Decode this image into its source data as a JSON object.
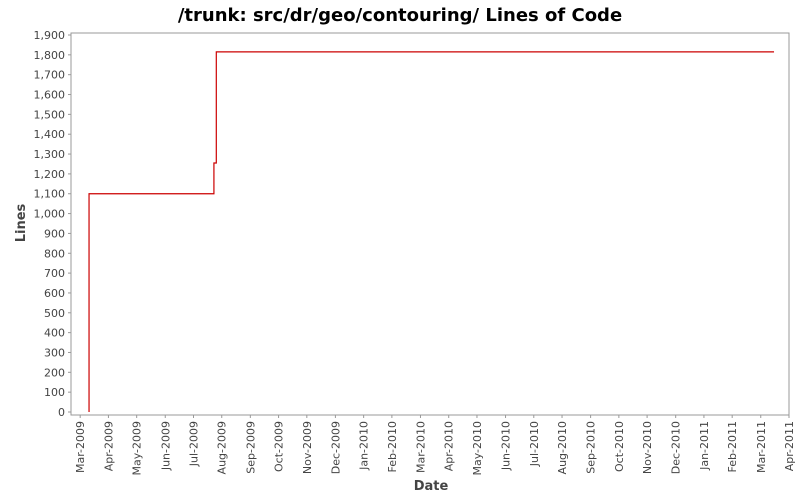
{
  "chart_data": {
    "type": "line",
    "title": "/trunk: src/dr/geo/contouring/ Lines of Code",
    "x_label": "Date",
    "y_label": "Lines",
    "x": [
      2009.193,
      2009.193,
      2009.56,
      2009.56,
      2009.567,
      2009.567,
      2011.206
    ],
    "series": [
      {
        "name": "Lines",
        "color": "#cc0000",
        "values": [
          0,
          1100,
          1100,
          1255,
          1255,
          1815,
          1815
        ]
      }
    ],
    "xlim": [
      2009.14,
      2011.25
    ],
    "xticks": [
      {
        "value": 2009.167,
        "label": "Mar-2009"
      },
      {
        "value": 2009.25,
        "label": "Apr-2009"
      },
      {
        "value": 2009.333,
        "label": "May-2009"
      },
      {
        "value": 2009.417,
        "label": "Jun-2009"
      },
      {
        "value": 2009.5,
        "label": "Jul-2009"
      },
      {
        "value": 2009.583,
        "label": "Aug-2009"
      },
      {
        "value": 2009.667,
        "label": "Sep-2009"
      },
      {
        "value": 2009.75,
        "label": "Oct-2009"
      },
      {
        "value": 2009.833,
        "label": "Nov-2009"
      },
      {
        "value": 2009.917,
        "label": "Dec-2009"
      },
      {
        "value": 2010.0,
        "label": "Jan-2010"
      },
      {
        "value": 2010.083,
        "label": "Feb-2010"
      },
      {
        "value": 2010.167,
        "label": "Mar-2010"
      },
      {
        "value": 2010.25,
        "label": "Apr-2010"
      },
      {
        "value": 2010.333,
        "label": "May-2010"
      },
      {
        "value": 2010.417,
        "label": "Jun-2010"
      },
      {
        "value": 2010.5,
        "label": "Jul-2010"
      },
      {
        "value": 2010.583,
        "label": "Aug-2010"
      },
      {
        "value": 2010.667,
        "label": "Sep-2010"
      },
      {
        "value": 2010.75,
        "label": "Oct-2010"
      },
      {
        "value": 2010.833,
        "label": "Nov-2010"
      },
      {
        "value": 2010.917,
        "label": "Dec-2010"
      },
      {
        "value": 2011.0,
        "label": "Jan-2011"
      },
      {
        "value": 2011.083,
        "label": "Feb-2011"
      },
      {
        "value": 2011.167,
        "label": "Mar-2011"
      },
      {
        "value": 2011.25,
        "label": "Apr-2011"
      }
    ],
    "ylim": [
      0,
      1900
    ],
    "yticks": [
      0,
      100,
      200,
      300,
      400,
      500,
      600,
      700,
      800,
      900,
      {
        "value": 1000,
        "label": "1,000"
      },
      {
        "value": 1100,
        "label": "1,100"
      },
      {
        "value": 1200,
        "label": "1,200"
      },
      {
        "value": 1300,
        "label": "1,300"
      },
      {
        "value": 1400,
        "label": "1,400"
      },
      {
        "value": 1500,
        "label": "1,500"
      },
      {
        "value": 1600,
        "label": "1,600"
      },
      {
        "value": 1700,
        "label": "1,700"
      },
      {
        "value": 1800,
        "label": "1,800"
      },
      {
        "value": 1900,
        "label": "1,900"
      }
    ],
    "grid": false
  }
}
